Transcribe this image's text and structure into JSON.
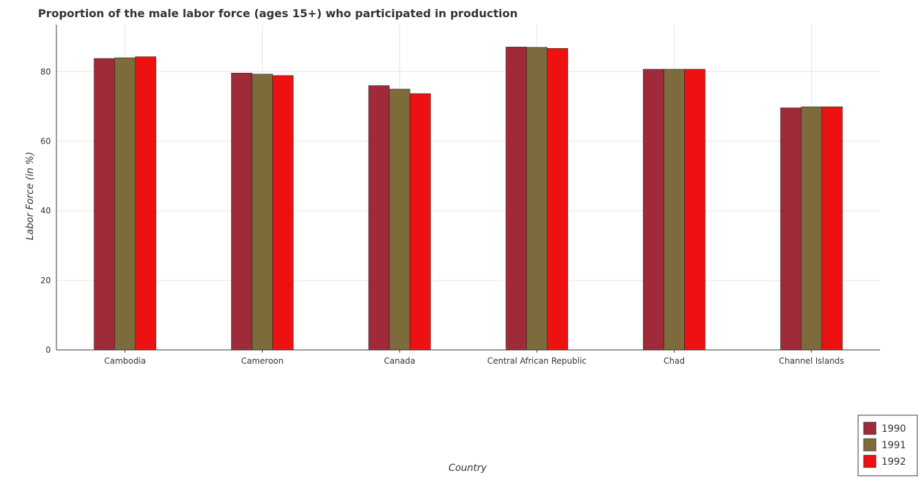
{
  "chart_data": {
    "type": "bar",
    "title": "Proportion of the male labor force (ages 15+) who participated in production",
    "xlabel": "Country",
    "ylabel": "Labor Force (in %)",
    "categories": [
      "Cambodia",
      "Cameroon",
      "Canada",
      "Central African Republic",
      "Chad",
      "Channel Islands"
    ],
    "series": [
      {
        "name": "1990",
        "color": "#9e2a3a",
        "values": [
          83.8,
          79.6,
          76.0,
          87.1,
          80.7,
          69.6
        ]
      },
      {
        "name": "1991",
        "color": "#7d6b3c",
        "values": [
          84.0,
          79.3,
          75.0,
          87.0,
          80.7,
          69.9
        ]
      },
      {
        "name": "1992",
        "color": "#ee1111",
        "values": [
          84.3,
          78.9,
          73.7,
          86.7,
          80.7,
          69.9
        ]
      }
    ],
    "ylim": [
      0,
      93.5
    ],
    "yticks": [
      0,
      20,
      40,
      60,
      80
    ],
    "grid": true,
    "legend_position": "bottom-right"
  }
}
